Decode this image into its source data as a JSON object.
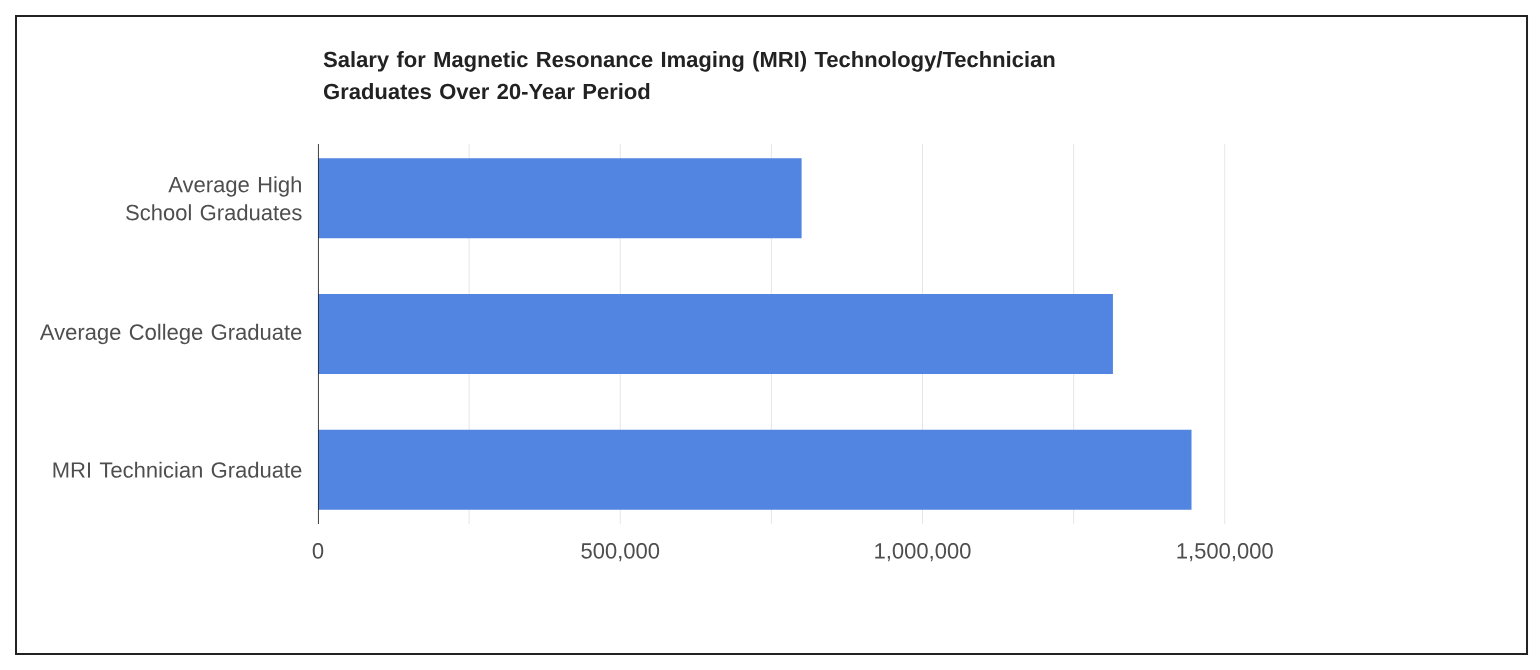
{
  "chart_data": {
    "type": "bar",
    "orientation": "horizontal",
    "title": "Salary for Magnetic Resonance Imaging (MRI) Technology/Technician Graduates Over 20-Year Period",
    "categories": [
      "Average High School Graduates",
      "Average College Graduate",
      "MRI Technician Graduate"
    ],
    "values": [
      800000,
      1315000,
      1445000
    ],
    "color": "#5185e1",
    "xlim": [
      0,
      2000000
    ],
    "xticks": [
      0,
      {
        "value": 250000,
        "label": null
      },
      {
        "value": 500000,
        "label": "500,000"
      },
      {
        "value": 750000,
        "label": null
      },
      {
        "value": 1000000,
        "label": "1,000,000"
      },
      {
        "value": 1250000,
        "label": null
      },
      {
        "value": 1500000,
        "label": "1,500,000"
      }
    ],
    "grid": "x"
  }
}
